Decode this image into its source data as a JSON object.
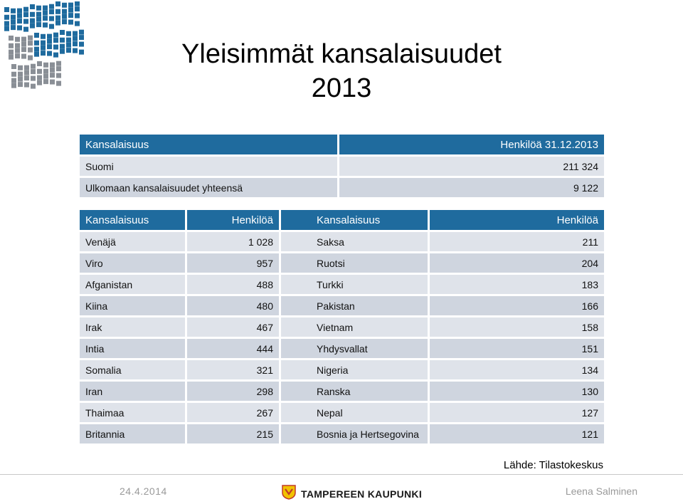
{
  "title_line1": "Yleisimmät kansalaisuudet",
  "title_line2": "2013",
  "summary": {
    "header": [
      "Kansalaisuus",
      "Henkilöä 31.12.2013"
    ],
    "rows": [
      [
        "Suomi",
        "211 324"
      ],
      [
        "Ulkomaan kansalaisuudet yhteensä",
        "9 122"
      ]
    ]
  },
  "detail": {
    "header": [
      "Kansalaisuus",
      "Henkilöä",
      "Kansalaisuus",
      "Henkilöä"
    ],
    "rows": [
      [
        "Venäjä",
        "1 028",
        "Saksa",
        "211"
      ],
      [
        "Viro",
        "957",
        "Ruotsi",
        "204"
      ],
      [
        "Afganistan",
        "488",
        "Turkki",
        "183"
      ],
      [
        "Kiina",
        "480",
        "Pakistan",
        "166"
      ],
      [
        "Irak",
        "467",
        "Vietnam",
        "158"
      ],
      [
        "Intia",
        "444",
        "Yhdysvallat",
        "151"
      ],
      [
        "Somalia",
        "321",
        "Nigeria",
        "134"
      ],
      [
        "Iran",
        "298",
        "Ranska",
        "130"
      ],
      [
        "Thaimaa",
        "267",
        "Nepal",
        "127"
      ],
      [
        "Britannia",
        "215",
        "Bosnia ja Hertsegovina",
        "121"
      ]
    ]
  },
  "source": "Lähde: Tilastokeskus",
  "footer": {
    "date": "24.4.2014",
    "city": "TAMPEREEN KAUPUNKI",
    "author": "Leena Salminen"
  },
  "colors": {
    "header_bg": "#1f6b9e",
    "row_light": "#dfe3ea",
    "row_dark": "#cfd5df",
    "logo_blue": "#1f6b9e",
    "logo_gray": "#8a8f96"
  },
  "icons": {
    "logo": "tampere-flag-wave-logo",
    "city_crest": "tampere-crest-icon"
  }
}
